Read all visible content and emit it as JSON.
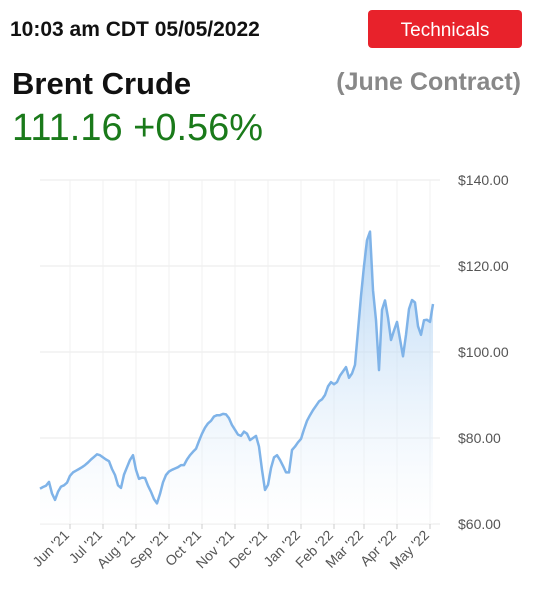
{
  "header": {
    "timestamp": "10:03 am CDT 05/05/2022",
    "button": "Technicals",
    "name": "Brent Crude",
    "contract": "(June Contract)",
    "price": "111.16",
    "change": "+0.56%"
  },
  "chart_data": {
    "type": "area",
    "color": "#7fb3e8",
    "grid": true,
    "categories": [
      null,
      null,
      null,
      null,
      null,
      null,
      null,
      null,
      null,
      null,
      "Jun '21",
      null,
      null,
      null,
      null,
      null,
      null,
      null,
      null,
      null,
      null,
      "Jul '21",
      null,
      null,
      null,
      null,
      null,
      null,
      null,
      null,
      null,
      null,
      "Aug '21",
      null,
      null,
      null,
      null,
      null,
      null,
      null,
      null,
      null,
      null,
      "Sep '21",
      null,
      null,
      null,
      null,
      null,
      null,
      null,
      null,
      null,
      null,
      "Oct '21",
      null,
      null,
      null,
      null,
      null,
      null,
      null,
      null,
      null,
      null,
      "Nov '21",
      null,
      null,
      null,
      null,
      null,
      null,
      null,
      null,
      null,
      null,
      "Dec '21",
      null,
      null,
      null,
      null,
      null,
      null,
      null,
      null,
      null,
      null,
      "Jan '22",
      null,
      null,
      null,
      null,
      null,
      null,
      null,
      null,
      null,
      null,
      "Feb '22",
      null,
      null,
      null,
      null,
      null,
      null,
      null,
      null,
      null,
      "Mar '22",
      null,
      null,
      null,
      null,
      null,
      null,
      null,
      null,
      null,
      null,
      "Apr '22",
      null,
      null,
      null,
      null,
      null,
      null,
      null,
      null,
      null,
      null,
      "May '22",
      null
    ],
    "values": [
      68.2,
      68.6,
      68.9,
      69.8,
      67.1,
      65.6,
      67.5,
      68.7,
      69.0,
      69.6,
      71.2,
      72.0,
      72.4,
      72.8,
      73.2,
      73.7,
      74.3,
      75.0,
      75.6,
      76.2,
      76.0,
      75.5,
      75.0,
      74.6,
      72.8,
      71.4,
      69.0,
      68.4,
      71.5,
      73.2,
      74.9,
      76.0,
      72.6,
      70.5,
      70.8,
      70.7,
      68.9,
      67.5,
      65.8,
      64.8,
      67.0,
      69.7,
      71.4,
      72.2,
      72.6,
      72.9,
      73.2,
      73.7,
      73.7,
      75.0,
      76.0,
      76.8,
      77.5,
      79.3,
      81.0,
      82.4,
      83.4,
      84.0,
      85.0,
      85.3,
      85.3,
      85.6,
      85.5,
      84.6,
      83.0,
      81.9,
      80.8,
      80.5,
      81.5,
      81.0,
      79.5,
      80.0,
      80.5,
      78.0,
      72.6,
      67.9,
      69.1,
      73.0,
      75.5,
      76.0,
      74.9,
      73.5,
      72.0,
      72.0,
      77.2,
      78.0,
      79.0,
      79.8,
      82.0,
      84.0,
      85.3,
      86.5,
      87.5,
      88.5,
      89.0,
      90.0,
      92.0,
      93.0,
      92.5,
      93.0,
      94.5,
      95.5,
      96.5,
      94.0,
      95.0,
      97.0,
      105.0,
      113.0,
      120.0,
      126.0,
      128.0,
      114.4,
      107.4,
      95.8,
      109.8,
      112.0,
      108.0,
      102.8,
      105.0,
      107.0,
      103.0,
      99.0,
      104.0,
      110.0,
      112.1,
      111.5,
      106.0,
      104.0,
      107.4,
      107.5,
      107.0,
      111.16
    ],
    "ylim": [
      60,
      140
    ],
    "yticks": [
      {
        "value": 60,
        "label": "$60.00"
      },
      {
        "value": 80,
        "label": "$80.00"
      },
      {
        "value": 100,
        "label": "$100.00"
      },
      {
        "value": 120,
        "label": "$120.00"
      },
      {
        "value": 140,
        "label": "$140.00"
      }
    ]
  }
}
